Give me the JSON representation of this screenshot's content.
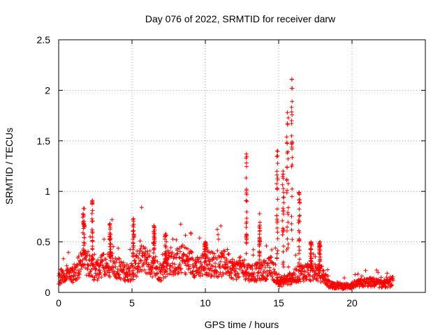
{
  "chart_data": {
    "type": "scatter",
    "title": "Day 076 of 2022, SRMTID for receiver darw",
    "xlabel": "GPS time / hours",
    "ylabel": "SRMTID / TECUs",
    "xlim": [
      0,
      25
    ],
    "ylim": [
      0,
      2.5
    ],
    "x_ticks": [
      0,
      5,
      10,
      15,
      20
    ],
    "y_ticks": [
      0,
      0.5,
      1,
      1.5,
      2,
      2.5
    ],
    "x_tick_labels": [
      "0",
      "5",
      "10",
      "15",
      "20"
    ],
    "y_tick_labels": [
      "0",
      "0.5",
      "1",
      "1.5",
      "2",
      "2.5"
    ],
    "grid": true,
    "marker": "+",
    "color": "#ff0000",
    "x_end": 22.8,
    "baseline": [
      [
        0.0,
        0.14
      ],
      [
        0.5,
        0.2
      ],
      [
        1.0,
        0.18
      ],
      [
        1.5,
        0.28
      ],
      [
        2.0,
        0.3
      ],
      [
        2.5,
        0.2
      ],
      [
        3.0,
        0.27
      ],
      [
        3.5,
        0.28
      ],
      [
        4.0,
        0.25
      ],
      [
        4.5,
        0.2
      ],
      [
        5.0,
        0.2
      ],
      [
        5.5,
        0.32
      ],
      [
        6.0,
        0.32
      ],
      [
        6.5,
        0.25
      ],
      [
        7.0,
        0.2
      ],
      [
        7.5,
        0.32
      ],
      [
        8.0,
        0.3
      ],
      [
        8.5,
        0.33
      ],
      [
        9.0,
        0.3
      ],
      [
        9.5,
        0.24
      ],
      [
        10.0,
        0.3
      ],
      [
        10.5,
        0.28
      ],
      [
        11.0,
        0.27
      ],
      [
        11.5,
        0.3
      ],
      [
        12.0,
        0.22
      ],
      [
        12.5,
        0.25
      ],
      [
        13.0,
        0.2
      ],
      [
        13.5,
        0.2
      ],
      [
        14.0,
        0.22
      ],
      [
        14.5,
        0.25
      ],
      [
        15.0,
        0.1
      ],
      [
        15.5,
        0.12
      ],
      [
        16.0,
        0.15
      ],
      [
        16.5,
        0.2
      ],
      [
        17.0,
        0.2
      ],
      [
        17.5,
        0.2
      ],
      [
        18.0,
        0.18
      ],
      [
        18.5,
        0.07
      ],
      [
        19.0,
        0.07
      ],
      [
        19.5,
        0.06
      ],
      [
        20.0,
        0.07
      ],
      [
        20.5,
        0.09
      ],
      [
        21.0,
        0.1
      ],
      [
        21.5,
        0.1
      ],
      [
        22.0,
        0.08
      ],
      [
        22.5,
        0.09
      ],
      [
        22.8,
        0.11
      ]
    ],
    "spikes": [
      {
        "x": 1.7,
        "peak": 0.83,
        "width": 0.12
      },
      {
        "x": 2.3,
        "peak": 0.91,
        "width": 0.06
      },
      {
        "x": 3.5,
        "peak": 0.68,
        "width": 0.1
      },
      {
        "x": 5.1,
        "peak": 0.73,
        "width": 0.08
      },
      {
        "x": 6.5,
        "peak": 0.66,
        "width": 0.1
      },
      {
        "x": 7.3,
        "peak": 0.58,
        "width": 0.12
      },
      {
        "x": 10.0,
        "peak": 0.5,
        "width": 0.15
      },
      {
        "x": 12.8,
        "peak": 1.37,
        "width": 0.05
      },
      {
        "x": 13.7,
        "peak": 0.78,
        "width": 0.05
      },
      {
        "x": 14.9,
        "peak": 1.4,
        "width": 0.08
      },
      {
        "x": 15.3,
        "peak": 1.2,
        "width": 0.1
      },
      {
        "x": 15.6,
        "peak": 1.78,
        "width": 0.12
      },
      {
        "x": 15.9,
        "peak": 2.11,
        "width": 0.05
      },
      {
        "x": 16.4,
        "peak": 0.99,
        "width": 0.08
      },
      {
        "x": 17.2,
        "peak": 0.5,
        "width": 0.08
      },
      {
        "x": 17.8,
        "peak": 0.5,
        "width": 0.08
      }
    ]
  }
}
